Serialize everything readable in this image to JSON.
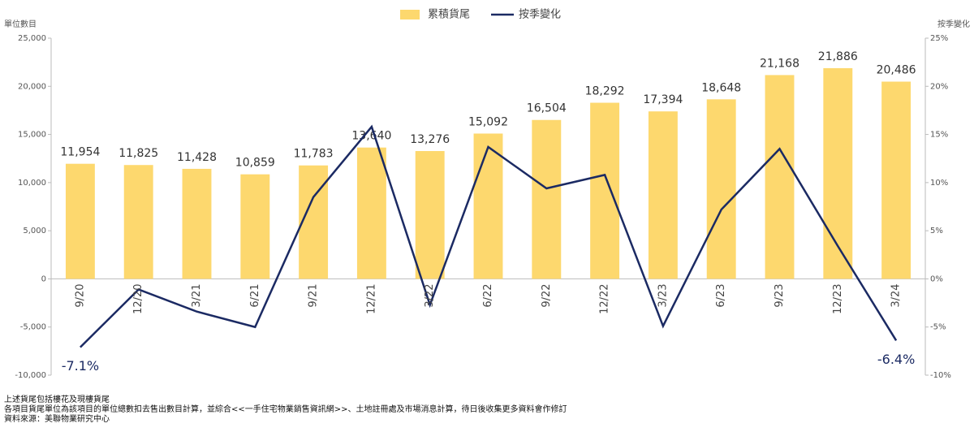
{
  "chart_data": {
    "type": "bar",
    "legend": "top",
    "y_label": "單位數目",
    "y2_label": "按季變化",
    "categories": [
      "9/20",
      "12/20",
      "3/21",
      "6/21",
      "9/21",
      "12/21",
      "3/22",
      "6/22",
      "9/22",
      "12/22",
      "3/23",
      "6/23",
      "9/23",
      "12/23",
      "3/24"
    ],
    "series": [
      {
        "name": "累積貨尾",
        "type": "bar",
        "color": "#fdd86e",
        "values": [
          11954,
          11825,
          11428,
          10859,
          11783,
          13640,
          13276,
          15092,
          16504,
          18292,
          17394,
          18648,
          21168,
          21886,
          20486
        ],
        "value_labels": [
          "11,954",
          "11,825",
          "11,428",
          "10,859",
          "11,783",
          "13,640",
          "13,276",
          "15,092",
          "16,504",
          "18,292",
          "17,394",
          "18,648",
          "21,168",
          "21,886",
          "20,486"
        ]
      },
      {
        "name": "按季變化",
        "type": "line",
        "axis": "y2",
        "color": "#1b2a63",
        "values": [
          -7.1,
          -1.1,
          -3.4,
          -5.0,
          8.5,
          15.8,
          -2.7,
          13.7,
          9.4,
          10.8,
          -4.9,
          7.2,
          13.5,
          3.4,
          -6.4
        ],
        "value_labels": [
          "-7.1%",
          null,
          null,
          null,
          null,
          null,
          null,
          null,
          null,
          null,
          null,
          null,
          null,
          null,
          "-6.4%"
        ]
      }
    ],
    "ylim": [
      -10000,
      25000
    ],
    "yticks": [
      {
        "value": -10000,
        "label": "-10,000"
      },
      {
        "value": -5000,
        "label": "-5,000"
      },
      0,
      {
        "value": 5000,
        "label": "5,000"
      },
      {
        "value": 10000,
        "label": "10,000"
      },
      {
        "value": 15000,
        "label": "15,000"
      },
      {
        "value": 20000,
        "label": "20,000"
      },
      {
        "value": 25000,
        "label": "25,000"
      }
    ],
    "y2lim": [
      -10,
      25
    ],
    "y2ticks": [
      {
        "value": -10,
        "label": "-10%"
      },
      {
        "value": -5,
        "label": "-5%"
      },
      {
        "value": 0,
        "label": "0%"
      },
      {
        "value": 5,
        "label": "5%"
      },
      {
        "value": 10,
        "label": "10%"
      },
      {
        "value": 15,
        "label": "15%"
      },
      {
        "value": 20,
        "label": "20%"
      },
      {
        "value": 25,
        "label": "25%"
      }
    ],
    "notes": [
      "上述貨尾包括樓花及現樓貨尾",
      "各項目貨尾單位為該項目的單位總數扣去售出數目計算，並綜合<<一手住宅物業銷售資訊網>>、土地註冊處及市場消息計算，待日後收集更多資料會作修訂",
      "資料來源：美聯物業研究中心"
    ]
  }
}
